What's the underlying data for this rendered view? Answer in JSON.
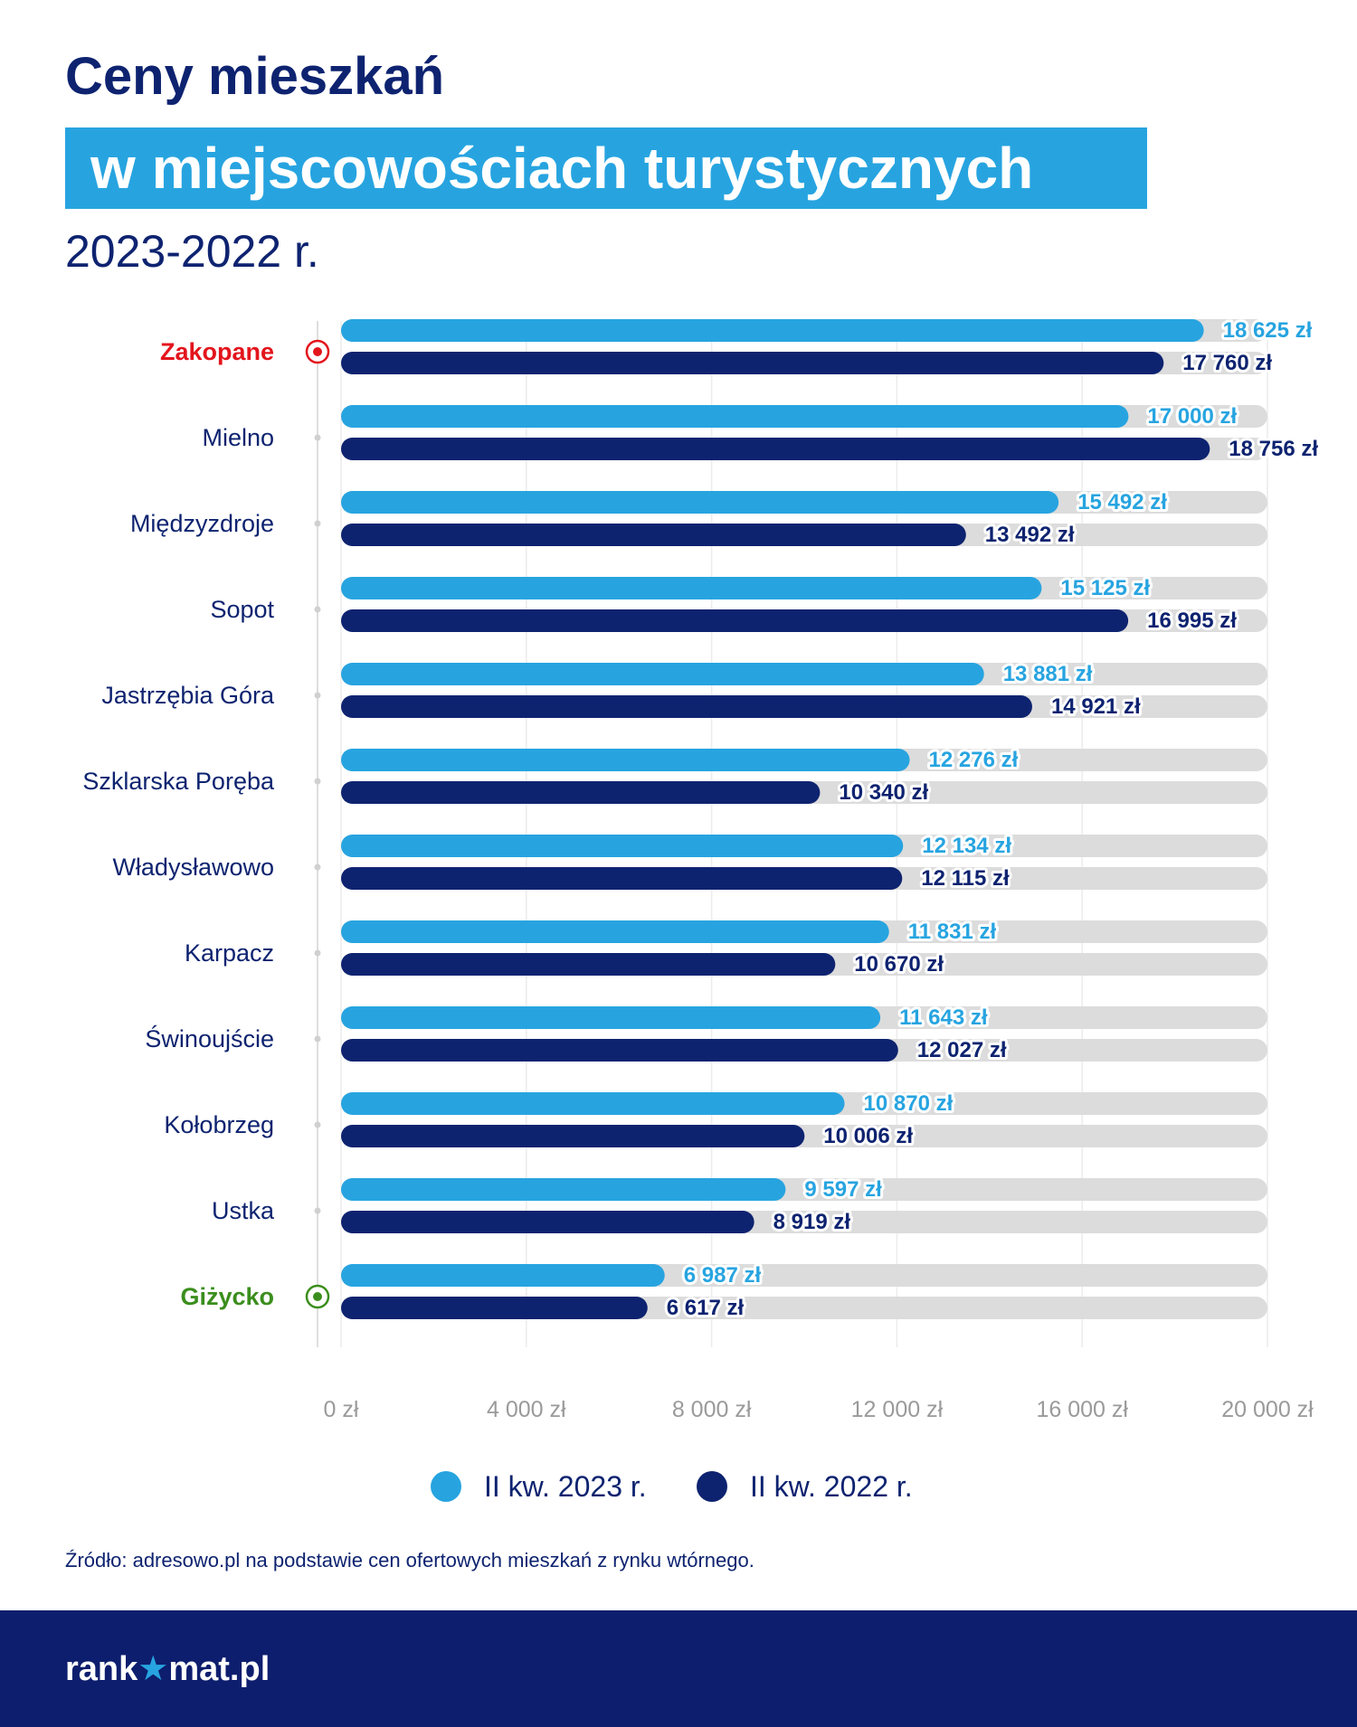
{
  "header": {
    "title_line1": "Ceny mieszkań",
    "title_line2": "w miejscowościach turystycznych",
    "subtitle": "2023-2022 r."
  },
  "chart_data": {
    "type": "bar",
    "orientation": "horizontal",
    "categories": [
      "Zakopane",
      "Mielno",
      "Międzyzdroje",
      "Sopot",
      "Jastrzębia Góra",
      "Szklarska Poręba",
      "Władysławowo",
      "Karpacz",
      "Świnoujście",
      "Kołobrzeg",
      "Ustka",
      "Giżycko"
    ],
    "highlight": {
      "Zakopane": "#e3141c",
      "Giżycko": "#3b8e1d"
    },
    "series": [
      {
        "name": "II kw. 2023 r.",
        "color": "#27a4e0",
        "values": [
          18625,
          17000,
          15492,
          15125,
          13881,
          12276,
          12134,
          11831,
          11643,
          10870,
          9597,
          6987
        ],
        "labels": [
          "18 625 zł",
          "17 000 zł",
          "15 492 zł",
          "15 125 zł",
          "13 881 zł",
          "12 276 zł",
          "12 134 zł",
          "11 831 zł",
          "11 643 zł",
          "10 870 zł",
          "9 597 zł",
          "6 987 zł"
        ]
      },
      {
        "name": "II kw. 2022 r.",
        "color": "#0e2370",
        "values": [
          17760,
          18756,
          13492,
          16995,
          14921,
          10340,
          12115,
          10670,
          12027,
          10006,
          8919,
          6617
        ],
        "labels": [
          "17 760 zł",
          "18 756 zł",
          "13 492 zł",
          "16 995 zł",
          "14 921 zł",
          "10 340 zł",
          "12 115 zł",
          "10 670 zł",
          "12 027 zł",
          "10 006 zł",
          "8 919 zł",
          "6 617 zł"
        ]
      }
    ],
    "x_ticks": [
      "0 zł",
      "4 000 zł",
      "8 000 zł",
      "12 000 zł",
      "16 000 zł",
      "20 000 zł"
    ],
    "xlim": [
      0,
      20000
    ],
    "tick_step": 4000,
    "track_color": "#dcdcdc",
    "grid": true,
    "legend_position": "bottom"
  },
  "legend": [
    {
      "label": "II kw. 2023 r.",
      "color": "#27a4e0"
    },
    {
      "label": "II kw. 2022 r.",
      "color": "#0e2370"
    }
  ],
  "source": "Źródło: adresowo.pl na podstawie cen ofertowych mieszkań z rynku wtórnego.",
  "brand": {
    "logo_pre": "rank",
    "logo_star": "★",
    "logo_post": "mat.pl"
  }
}
